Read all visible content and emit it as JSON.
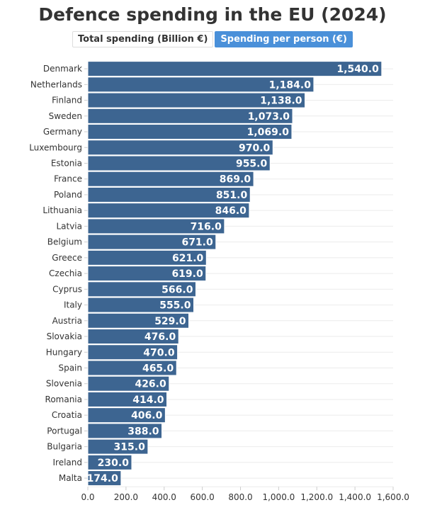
{
  "header": {
    "title": "Defence spending in the EU (2024)",
    "toggles": [
      {
        "label": "Total spending (Billion €)",
        "active": false
      },
      {
        "label": "Spending per person (€)",
        "active": true
      }
    ]
  },
  "chart_data": {
    "type": "bar",
    "orientation": "horizontal",
    "title": "Defence spending in the EU (2024)",
    "categories": [
      "Denmark",
      "Netherlands",
      "Finland",
      "Sweden",
      "Germany",
      "Luxembourg",
      "Estonia",
      "France",
      "Poland",
      "Lithuania",
      "Latvia",
      "Belgium",
      "Greece",
      "Czechia",
      "Cyprus",
      "Italy",
      "Austria",
      "Slovakia",
      "Hungary",
      "Spain",
      "Slovenia",
      "Romania",
      "Croatia",
      "Portugal",
      "Bulgaria",
      "Ireland",
      "Malta"
    ],
    "values": [
      1540,
      1184,
      1138,
      1073,
      1069,
      970,
      955,
      869,
      851,
      846,
      716,
      671,
      621,
      619,
      566,
      555,
      529,
      476,
      470,
      465,
      426,
      414,
      406,
      388,
      315,
      230,
      174
    ],
    "value_labels": [
      "1,540.0",
      "1,184.0",
      "1,138.0",
      "1,073.0",
      "1,069.0",
      "970.0",
      "955.0",
      "869.0",
      "851.0",
      "846.0",
      "716.0",
      "671.0",
      "621.0",
      "619.0",
      "566.0",
      "555.0",
      "529.0",
      "476.0",
      "470.0",
      "465.0",
      "426.0",
      "414.0",
      "406.0",
      "388.0",
      "315.0",
      "230.0",
      "174.0"
    ],
    "xlim": [
      0,
      1600
    ],
    "x_ticks": [
      "0.0",
      "200.0",
      "400.0",
      "600.0",
      "800.0",
      "1,000.0",
      "1,200.0",
      "1,400.0",
      "1,600.0"
    ],
    "grid": true,
    "bar_color": "#3d6591"
  }
}
